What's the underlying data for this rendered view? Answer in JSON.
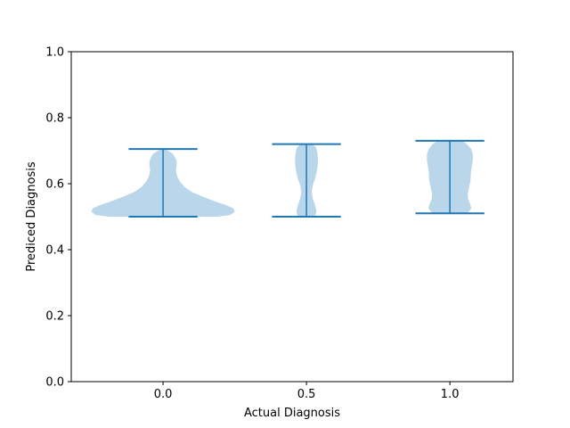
{
  "chart_data": {
    "type": "violin",
    "title": "",
    "xlabel": "Actual Diagnosis",
    "ylabel": "Prediced Diagnosis",
    "xlim": [
      -0.32,
      1.22
    ],
    "ylim": [
      0.0,
      1.0
    ],
    "xticks": [
      {
        "value": 0.0,
        "label": "0.0"
      },
      {
        "value": 0.5,
        "label": "0.5"
      },
      {
        "value": 1.0,
        "label": "1.0"
      }
    ],
    "yticks": [
      {
        "value": 0.0,
        "label": "0.0"
      },
      {
        "value": 0.2,
        "label": "0.2"
      },
      {
        "value": 0.4,
        "label": "0.4"
      },
      {
        "value": 0.6,
        "label": "0.6"
      },
      {
        "value": 0.8,
        "label": "0.8"
      },
      {
        "value": 1.0,
        "label": "1.0"
      }
    ],
    "grid": false,
    "colors": {
      "body": "#bad6ea",
      "lines": "#1f77b4",
      "spine": "#000000"
    },
    "violins": [
      {
        "position": 0.0,
        "min": 0.5,
        "max": 0.705,
        "profile": [
          [
            0.5,
            0.19
          ],
          [
            0.505,
            0.235
          ],
          [
            0.515,
            0.25
          ],
          [
            0.525,
            0.245
          ],
          [
            0.535,
            0.22
          ],
          [
            0.545,
            0.185
          ],
          [
            0.56,
            0.14
          ],
          [
            0.575,
            0.1
          ],
          [
            0.59,
            0.075
          ],
          [
            0.605,
            0.06
          ],
          [
            0.62,
            0.05
          ],
          [
            0.64,
            0.045
          ],
          [
            0.66,
            0.048
          ],
          [
            0.675,
            0.045
          ],
          [
            0.69,
            0.035
          ],
          [
            0.7,
            0.018
          ],
          [
            0.705,
            0.0
          ]
        ]
      },
      {
        "position": 0.5,
        "min": 0.5,
        "max": 0.72,
        "profile": [
          [
            0.5,
            0.03
          ],
          [
            0.515,
            0.035
          ],
          [
            0.535,
            0.03
          ],
          [
            0.555,
            0.022
          ],
          [
            0.575,
            0.018
          ],
          [
            0.595,
            0.022
          ],
          [
            0.615,
            0.03
          ],
          [
            0.635,
            0.036
          ],
          [
            0.655,
            0.039
          ],
          [
            0.675,
            0.04
          ],
          [
            0.695,
            0.038
          ],
          [
            0.71,
            0.033
          ],
          [
            0.72,
            0.02
          ]
        ]
      },
      {
        "position": 1.0,
        "min": 0.51,
        "max": 0.73,
        "profile": [
          [
            0.51,
            0.06
          ],
          [
            0.525,
            0.075
          ],
          [
            0.54,
            0.07
          ],
          [
            0.555,
            0.063
          ],
          [
            0.57,
            0.062
          ],
          [
            0.59,
            0.067
          ],
          [
            0.61,
            0.072
          ],
          [
            0.63,
            0.073
          ],
          [
            0.65,
            0.076
          ],
          [
            0.67,
            0.08
          ],
          [
            0.69,
            0.08
          ],
          [
            0.705,
            0.074
          ],
          [
            0.715,
            0.065
          ],
          [
            0.725,
            0.052
          ],
          [
            0.73,
            0.04
          ]
        ]
      }
    ]
  }
}
